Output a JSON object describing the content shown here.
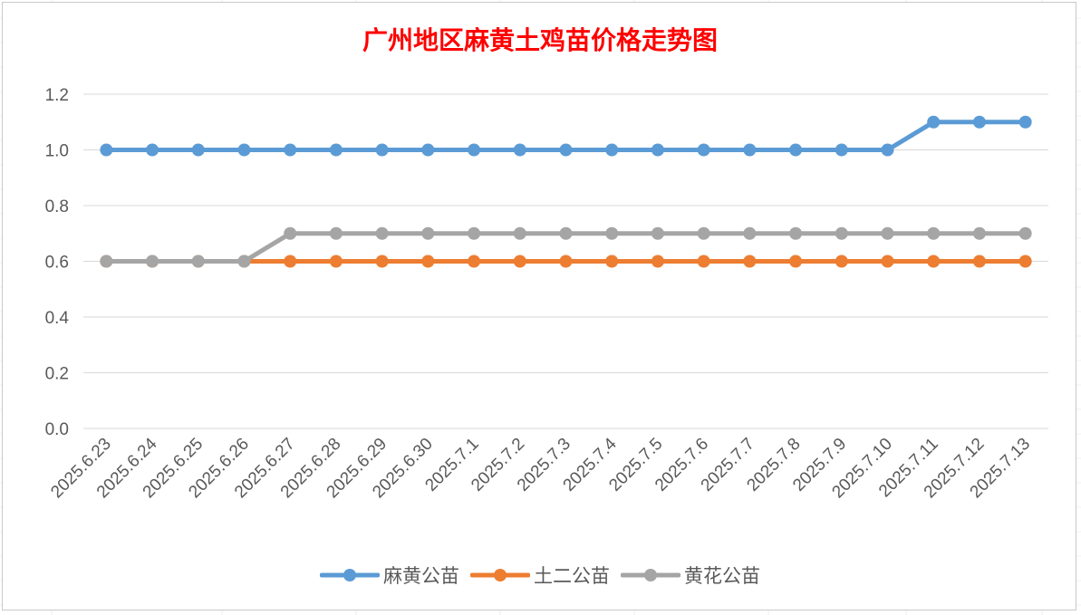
{
  "chart_data": {
    "type": "line",
    "title": "广州地区麻黄土鸡苗价格走势图",
    "categories": [
      "2025.6.23",
      "2025.6.24",
      "2025.6.25",
      "2025.6.26",
      "2025.6.27",
      "2025.6.28",
      "2025.6.29",
      "2025.6.30",
      "2025.7.1",
      "2025.7.2",
      "2025.7.3",
      "2025.7.4",
      "2025.7.5",
      "2025.7.6",
      "2025.7.7",
      "2025.7.8",
      "2025.7.9",
      "2025.7.10",
      "2025.7.11",
      "2025.7.12",
      "2025.7.13"
    ],
    "series": [
      {
        "name": "麻黄公苗",
        "color": "#5b9bd5",
        "values": [
          1.0,
          1.0,
          1.0,
          1.0,
          1.0,
          1.0,
          1.0,
          1.0,
          1.0,
          1.0,
          1.0,
          1.0,
          1.0,
          1.0,
          1.0,
          1.0,
          1.0,
          1.0,
          1.1,
          1.1,
          1.1
        ]
      },
      {
        "name": "土二公苗",
        "color": "#ed7d31",
        "values": [
          0.6,
          0.6,
          0.6,
          0.6,
          0.6,
          0.6,
          0.6,
          0.6,
          0.6,
          0.6,
          0.6,
          0.6,
          0.6,
          0.6,
          0.6,
          0.6,
          0.6,
          0.6,
          0.6,
          0.6,
          0.6
        ]
      },
      {
        "name": "黄花公苗",
        "color": "#a5a5a5",
        "values": [
          0.6,
          0.6,
          0.6,
          0.6,
          0.7,
          0.7,
          0.7,
          0.7,
          0.7,
          0.7,
          0.7,
          0.7,
          0.7,
          0.7,
          0.7,
          0.7,
          0.7,
          0.7,
          0.7,
          0.7,
          0.7
        ]
      }
    ],
    "ylim": [
      0,
      1.2
    ],
    "yticks": [
      "0.0",
      "0.2",
      "0.4",
      "0.6",
      "0.8",
      "1.0",
      "1.2"
    ],
    "grid": true,
    "legend_position": "bottom"
  }
}
